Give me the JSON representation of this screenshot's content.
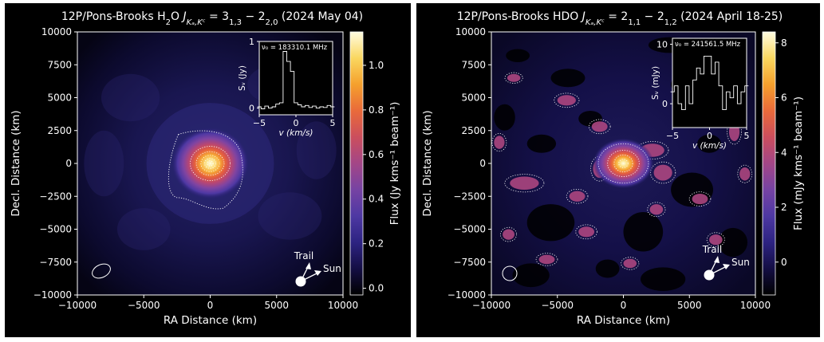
{
  "chart_data": [
    {
      "type": "heatmap",
      "title": "12P/Pons-Brooks H₂O Jₖₐ,ₖᶜ = 3₁,₃ − 2₂,₀ (2024 May 04)",
      "title_parts": {
        "prefix": "12P/Pons-Brooks H",
        "sub2": "2",
        "mid": "O ",
        "J": "J",
        "jsub": "Kₐ,Kᶜ",
        "eq": " = 3",
        "q1": "1,3",
        "minus": " − 2",
        "q2": "2,0",
        "suffix": " (2024 May 04)"
      },
      "xlabel": "RA Distance (km)",
      "ylabel": "Decl. Distance (km)",
      "xlim": [
        -10000,
        10000
      ],
      "ylim": [
        -10000,
        10000
      ],
      "xticks": [
        "−10000",
        "−5000",
        "0",
        "5000",
        "10000"
      ],
      "yticks": [
        "10000",
        "7500",
        "5000",
        "2500",
        "0",
        "−2500",
        "−5000",
        "−7500",
        "−10000"
      ],
      "colorbar": {
        "label": "Flux (Jy kms⁻¹ beam⁻¹)",
        "min": -0.03,
        "max": 1.15,
        "ticks": [
          "0.0",
          "0.2",
          "0.4",
          "0.6",
          "0.8",
          "1.0"
        ]
      },
      "peak": {
        "x": 0,
        "y": 0,
        "value": 1.15
      },
      "annotations": {
        "trail": "Trail",
        "sun": "Sun"
      },
      "inset": {
        "label": "ν₀ = 183310.1 MHz",
        "xlabel": "v (km/s)",
        "ylabel": "Sᵥ (Jy)",
        "xlim": [
          -5,
          5
        ],
        "ylim": [
          -0.1,
          1
        ],
        "xticks": [
          "−5",
          "0",
          "5"
        ],
        "yticks": [
          "1",
          "0"
        ],
        "spectrum": {
          "v": [
            -5,
            -4.5,
            -4,
            -3.5,
            -3,
            -2.5,
            -2,
            -1.5,
            -1,
            -0.5,
            0,
            0.5,
            1,
            1.5,
            2,
            2.5,
            3,
            3.5,
            4,
            4.5,
            5
          ],
          "s": [
            0.02,
            -0.01,
            0.03,
            0.0,
            0.02,
            0.06,
            0.08,
            0.85,
            0.7,
            0.55,
            0.08,
            0.05,
            0.02,
            0.04,
            0.01,
            0.03,
            0.0,
            0.02,
            0.01,
            0.04,
            0.02
          ]
        }
      }
    },
    {
      "type": "heatmap",
      "title": "12P/Pons-Brooks HDO Jₖₐ,ₖᶜ = 2₁,₁ − 2₁,₂ (2024 April 18-25)",
      "title_parts": {
        "prefix": "12P/Pons-Brooks HDO ",
        "J": "J",
        "jsub": "Kₐ,Kᶜ",
        "eq": " = 2",
        "q1": "1,1",
        "minus": " − 2",
        "q2": "1,2",
        "suffix": " (2024 April 18-25)"
      },
      "xlabel": "RA Distance (km)",
      "ylabel": "Decl. Distance (km)",
      "xlim": [
        -10000,
        10000
      ],
      "ylim": [
        -10000,
        10000
      ],
      "xticks": [
        "−10000",
        "−5000",
        "0",
        "5000",
        "10000"
      ],
      "yticks": [
        "10000",
        "7500",
        "5000",
        "2500",
        "0",
        "−2500",
        "−5000",
        "−7500",
        "−10000"
      ],
      "colorbar": {
        "label": "Flux (mJy kms⁻¹ beam⁻¹)",
        "min": -1.2,
        "max": 8.4,
        "ticks": [
          "0",
          "2",
          "4",
          "6",
          "8"
        ]
      },
      "peak": {
        "x": 0,
        "y": 0,
        "value": 8.4
      },
      "annotations": {
        "trail": "Trail",
        "sun": "Sun"
      },
      "inset": {
        "label": "ν₀ = 241561.5 MHz",
        "xlabel": "v (km/s)",
        "ylabel": "Sᵥ (mJy)",
        "xlim": [
          -5,
          5
        ],
        "ylim": [
          -4,
          11
        ],
        "xticks": [
          "−5",
          "0",
          "5"
        ],
        "yticks": [
          "10",
          "0"
        ],
        "spectrum": {
          "v": [
            -5,
            -4.5,
            -4,
            -3.5,
            -3,
            -2.5,
            -2,
            -1.5,
            -1,
            -0.5,
            0,
            0.5,
            1,
            1.5,
            2,
            2.5,
            3,
            3.5,
            4,
            4.5,
            5
          ],
          "s": [
            2,
            3,
            0,
            -1,
            3,
            0,
            4,
            6,
            5,
            8,
            8,
            5,
            7,
            3,
            -1,
            2,
            1,
            3,
            0,
            2,
            3
          ]
        }
      }
    }
  ]
}
